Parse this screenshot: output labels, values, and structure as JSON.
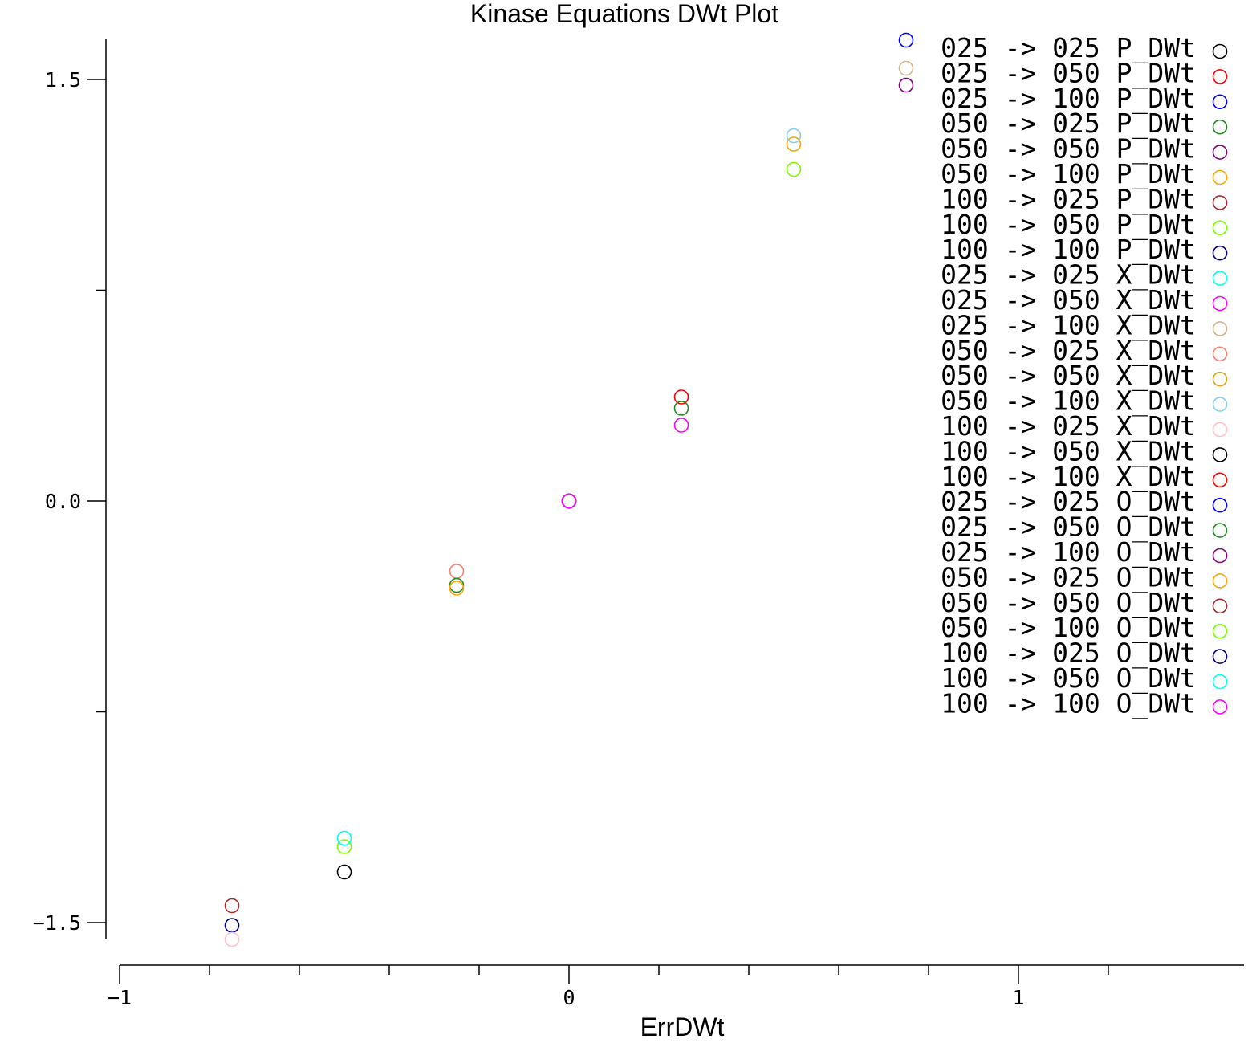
{
  "chart_data": {
    "type": "scatter",
    "title": "Kinase Equations DWt Plot",
    "xlabel": "ErrDWt",
    "ylabel": "",
    "xlim": [
      -1,
      1.25
    ],
    "ylim": [
      -1.6,
      1.65
    ],
    "x_ticks": [
      {
        "value": -1,
        "label": "−1"
      },
      {
        "value": 0,
        "label": "0"
      },
      {
        "value": 1,
        "label": "1"
      }
    ],
    "x_minor_ticks": [
      -0.8,
      -0.6,
      -0.4,
      -0.2,
      0.2,
      0.4,
      0.6,
      0.8,
      1.2
    ],
    "y_ticks": [
      {
        "value": -1.5,
        "label": "−1.5"
      },
      {
        "value": 0,
        "label": "0.0"
      },
      {
        "value": 1.5,
        "label": "1.5"
      }
    ],
    "y_minor_ticks": [
      -0.75,
      0.75
    ],
    "legend_position": "top-right",
    "series": [
      {
        "name": "025 -> 025 P_DWt",
        "color": "#000000",
        "points": []
      },
      {
        "name": "025 -> 050 P_DWt",
        "color": "#ff0000",
        "points": []
      },
      {
        "name": "025 -> 100 P_DWt",
        "color": "#0000ff",
        "points": [
          [
            0.75,
            1.64
          ]
        ]
      },
      {
        "name": "050 -> 025 P_DWt",
        "color": "#228b22",
        "points": []
      },
      {
        "name": "050 -> 050 P_DWt",
        "color": "#800080",
        "points": [
          [
            0.75,
            1.48
          ]
        ]
      },
      {
        "name": "050 -> 100 P_DWt",
        "color": "#ffa500",
        "points": [
          [
            0.5,
            1.27
          ]
        ]
      },
      {
        "name": "100 -> 025 P_DWt",
        "color": "#a52a2a",
        "points": [
          [
            -0.75,
            -1.44
          ]
        ]
      },
      {
        "name": "100 -> 050 P_DWt",
        "color": "#7cfc00",
        "points": [
          [
            0.5,
            1.18
          ],
          [
            -0.5,
            -1.23
          ]
        ]
      },
      {
        "name": "100 -> 100 P_DWt",
        "color": "#000080",
        "points": [
          [
            -0.75,
            -1.51
          ]
        ]
      },
      {
        "name": "025 -> 025 X_DWt",
        "color": "#00ffff",
        "points": []
      },
      {
        "name": "025 -> 050 X_DWt",
        "color": "#ff00ff",
        "points": []
      },
      {
        "name": "025 -> 100 X_DWt",
        "color": "#d2b48c",
        "points": [
          [
            0.75,
            1.54
          ]
        ]
      },
      {
        "name": "050 -> 025 X_DWt",
        "color": "#fa8072",
        "points": [
          [
            -0.25,
            -0.25
          ]
        ]
      },
      {
        "name": "050 -> 050 X_DWt",
        "color": "#daa520",
        "points": []
      },
      {
        "name": "050 -> 100 X_DWt",
        "color": "#87ceeb",
        "points": [
          [
            0.5,
            1.3
          ]
        ]
      },
      {
        "name": "100 -> 025 X_DWt",
        "color": "#ffc0cb",
        "points": [
          [
            -0.75,
            -1.56
          ]
        ]
      },
      {
        "name": "100 -> 050 X_DWt",
        "color": "#000000",
        "points": [
          [
            -0.5,
            -1.32
          ]
        ]
      },
      {
        "name": "100 -> 100 X_DWt",
        "color": "#ff0000",
        "points": [
          [
            0.25,
            0.37
          ],
          [
            0,
            0
          ]
        ]
      },
      {
        "name": "025 -> 025 O_DWt",
        "color": "#0000ff",
        "points": [
          [
            0,
            0
          ]
        ]
      },
      {
        "name": "025 -> 050 O_DWt",
        "color": "#228b22",
        "points": [
          [
            0.25,
            0.33
          ],
          [
            -0.25,
            -0.3
          ],
          [
            0,
            0
          ]
        ]
      },
      {
        "name": "025 -> 100 O_DWt",
        "color": "#800080",
        "points": [
          [
            0,
            0
          ]
        ]
      },
      {
        "name": "050 -> 025 O_DWt",
        "color": "#ffa500",
        "points": [
          [
            -0.25,
            -0.31
          ]
        ]
      },
      {
        "name": "050 -> 050 O_DWt",
        "color": "#a52a2a",
        "points": []
      },
      {
        "name": "050 -> 100 O_DWt",
        "color": "#7cfc00",
        "points": []
      },
      {
        "name": "100 -> 025 O_DWt",
        "color": "#000080",
        "points": []
      },
      {
        "name": "100 -> 050 O_DWt",
        "color": "#00ffff",
        "points": [
          [
            -0.5,
            -1.2
          ]
        ]
      },
      {
        "name": "100 -> 100 O_DWt",
        "color": "#ff00ff",
        "points": [
          [
            0.25,
            0.27
          ],
          [
            0,
            0
          ]
        ]
      }
    ]
  }
}
